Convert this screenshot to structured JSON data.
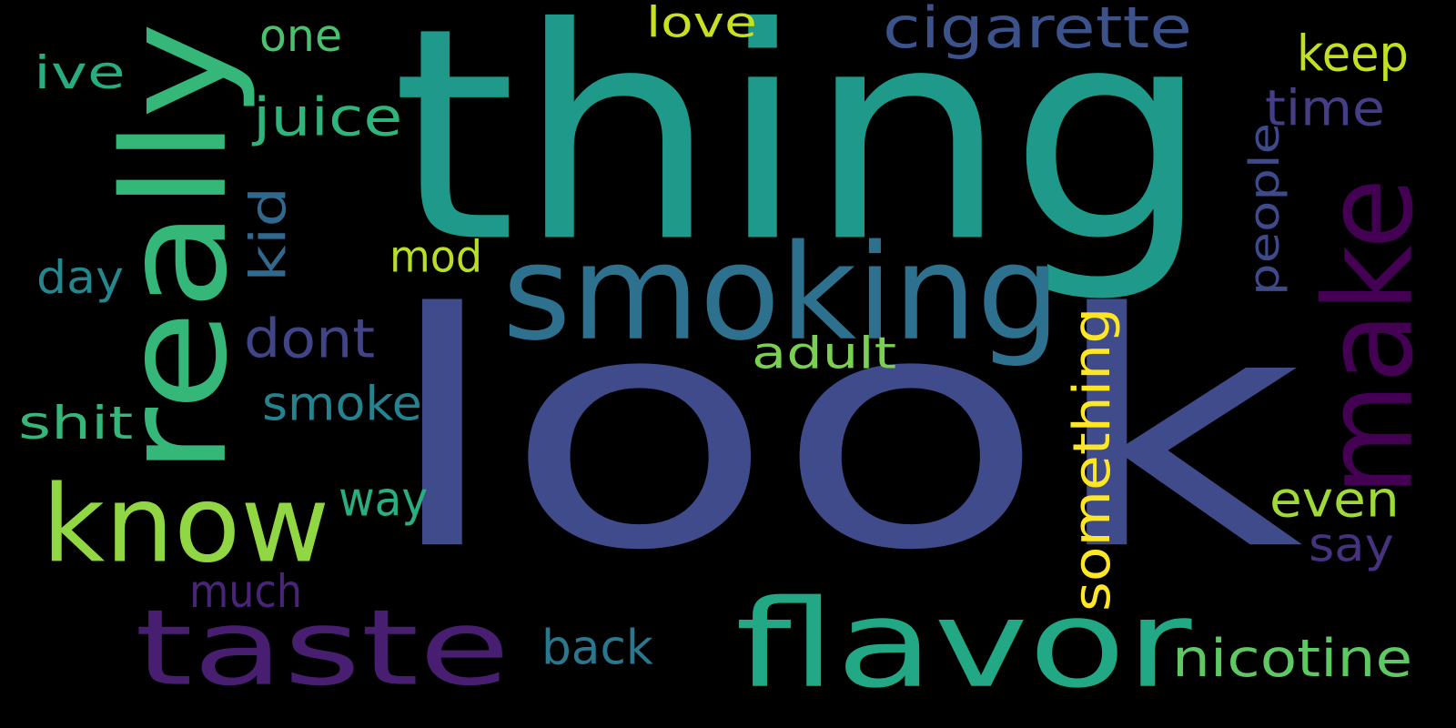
{
  "background": "#000000",
  "words": [
    {
      "text": "look",
      "color": "#3f4b8a",
      "rotated": false
    },
    {
      "text": "thing",
      "color": "#1f9a8a",
      "rotated": false
    },
    {
      "text": "smoking",
      "color": "#2d718e",
      "rotated": false
    },
    {
      "text": "really",
      "color": "#35b779",
      "rotated": true
    },
    {
      "text": "know",
      "color": "#90d743",
      "rotated": false
    },
    {
      "text": "taste",
      "color": "#481f70",
      "rotated": false
    },
    {
      "text": "flavor",
      "color": "#22a884",
      "rotated": false
    },
    {
      "text": "make",
      "color": "#440154",
      "rotated": true
    },
    {
      "text": "cigarette",
      "color": "#3b528b",
      "rotated": false
    },
    {
      "text": "something",
      "color": "#fde725",
      "rotated": true
    },
    {
      "text": "nicotine",
      "color": "#5ec962",
      "rotated": false
    },
    {
      "text": "juice",
      "color": "#2fb47c",
      "rotated": false
    },
    {
      "text": "dont",
      "color": "#414487",
      "rotated": false
    },
    {
      "text": "smoke",
      "color": "#26828e",
      "rotated": false
    },
    {
      "text": "mod",
      "color": "#b8de29",
      "rotated": false
    },
    {
      "text": "adult",
      "color": "#7ad151",
      "rotated": false
    },
    {
      "text": "even",
      "color": "#a0da39",
      "rotated": false
    },
    {
      "text": "back",
      "color": "#2a788e",
      "rotated": false
    },
    {
      "text": "much",
      "color": "#482576",
      "rotated": false
    },
    {
      "text": "way",
      "color": "#29af7f",
      "rotated": false
    },
    {
      "text": "kid",
      "color": "#31688e",
      "rotated": true
    },
    {
      "text": "people",
      "color": "#3e4a89",
      "rotated": true
    },
    {
      "text": "time",
      "color": "#433e85",
      "rotated": false
    },
    {
      "text": "keep",
      "color": "#c2df23",
      "rotated": false
    },
    {
      "text": "love",
      "color": "#c8e020",
      "rotated": false
    },
    {
      "text": "one",
      "color": "#4ac16d",
      "rotated": false
    },
    {
      "text": "ive",
      "color": "#27ad81",
      "rotated": false
    },
    {
      "text": "day",
      "color": "#24878e",
      "rotated": false
    },
    {
      "text": "shit",
      "color": "#35b779",
      "rotated": false
    },
    {
      "text": "say",
      "color": "#46327e",
      "rotated": false
    }
  ]
}
